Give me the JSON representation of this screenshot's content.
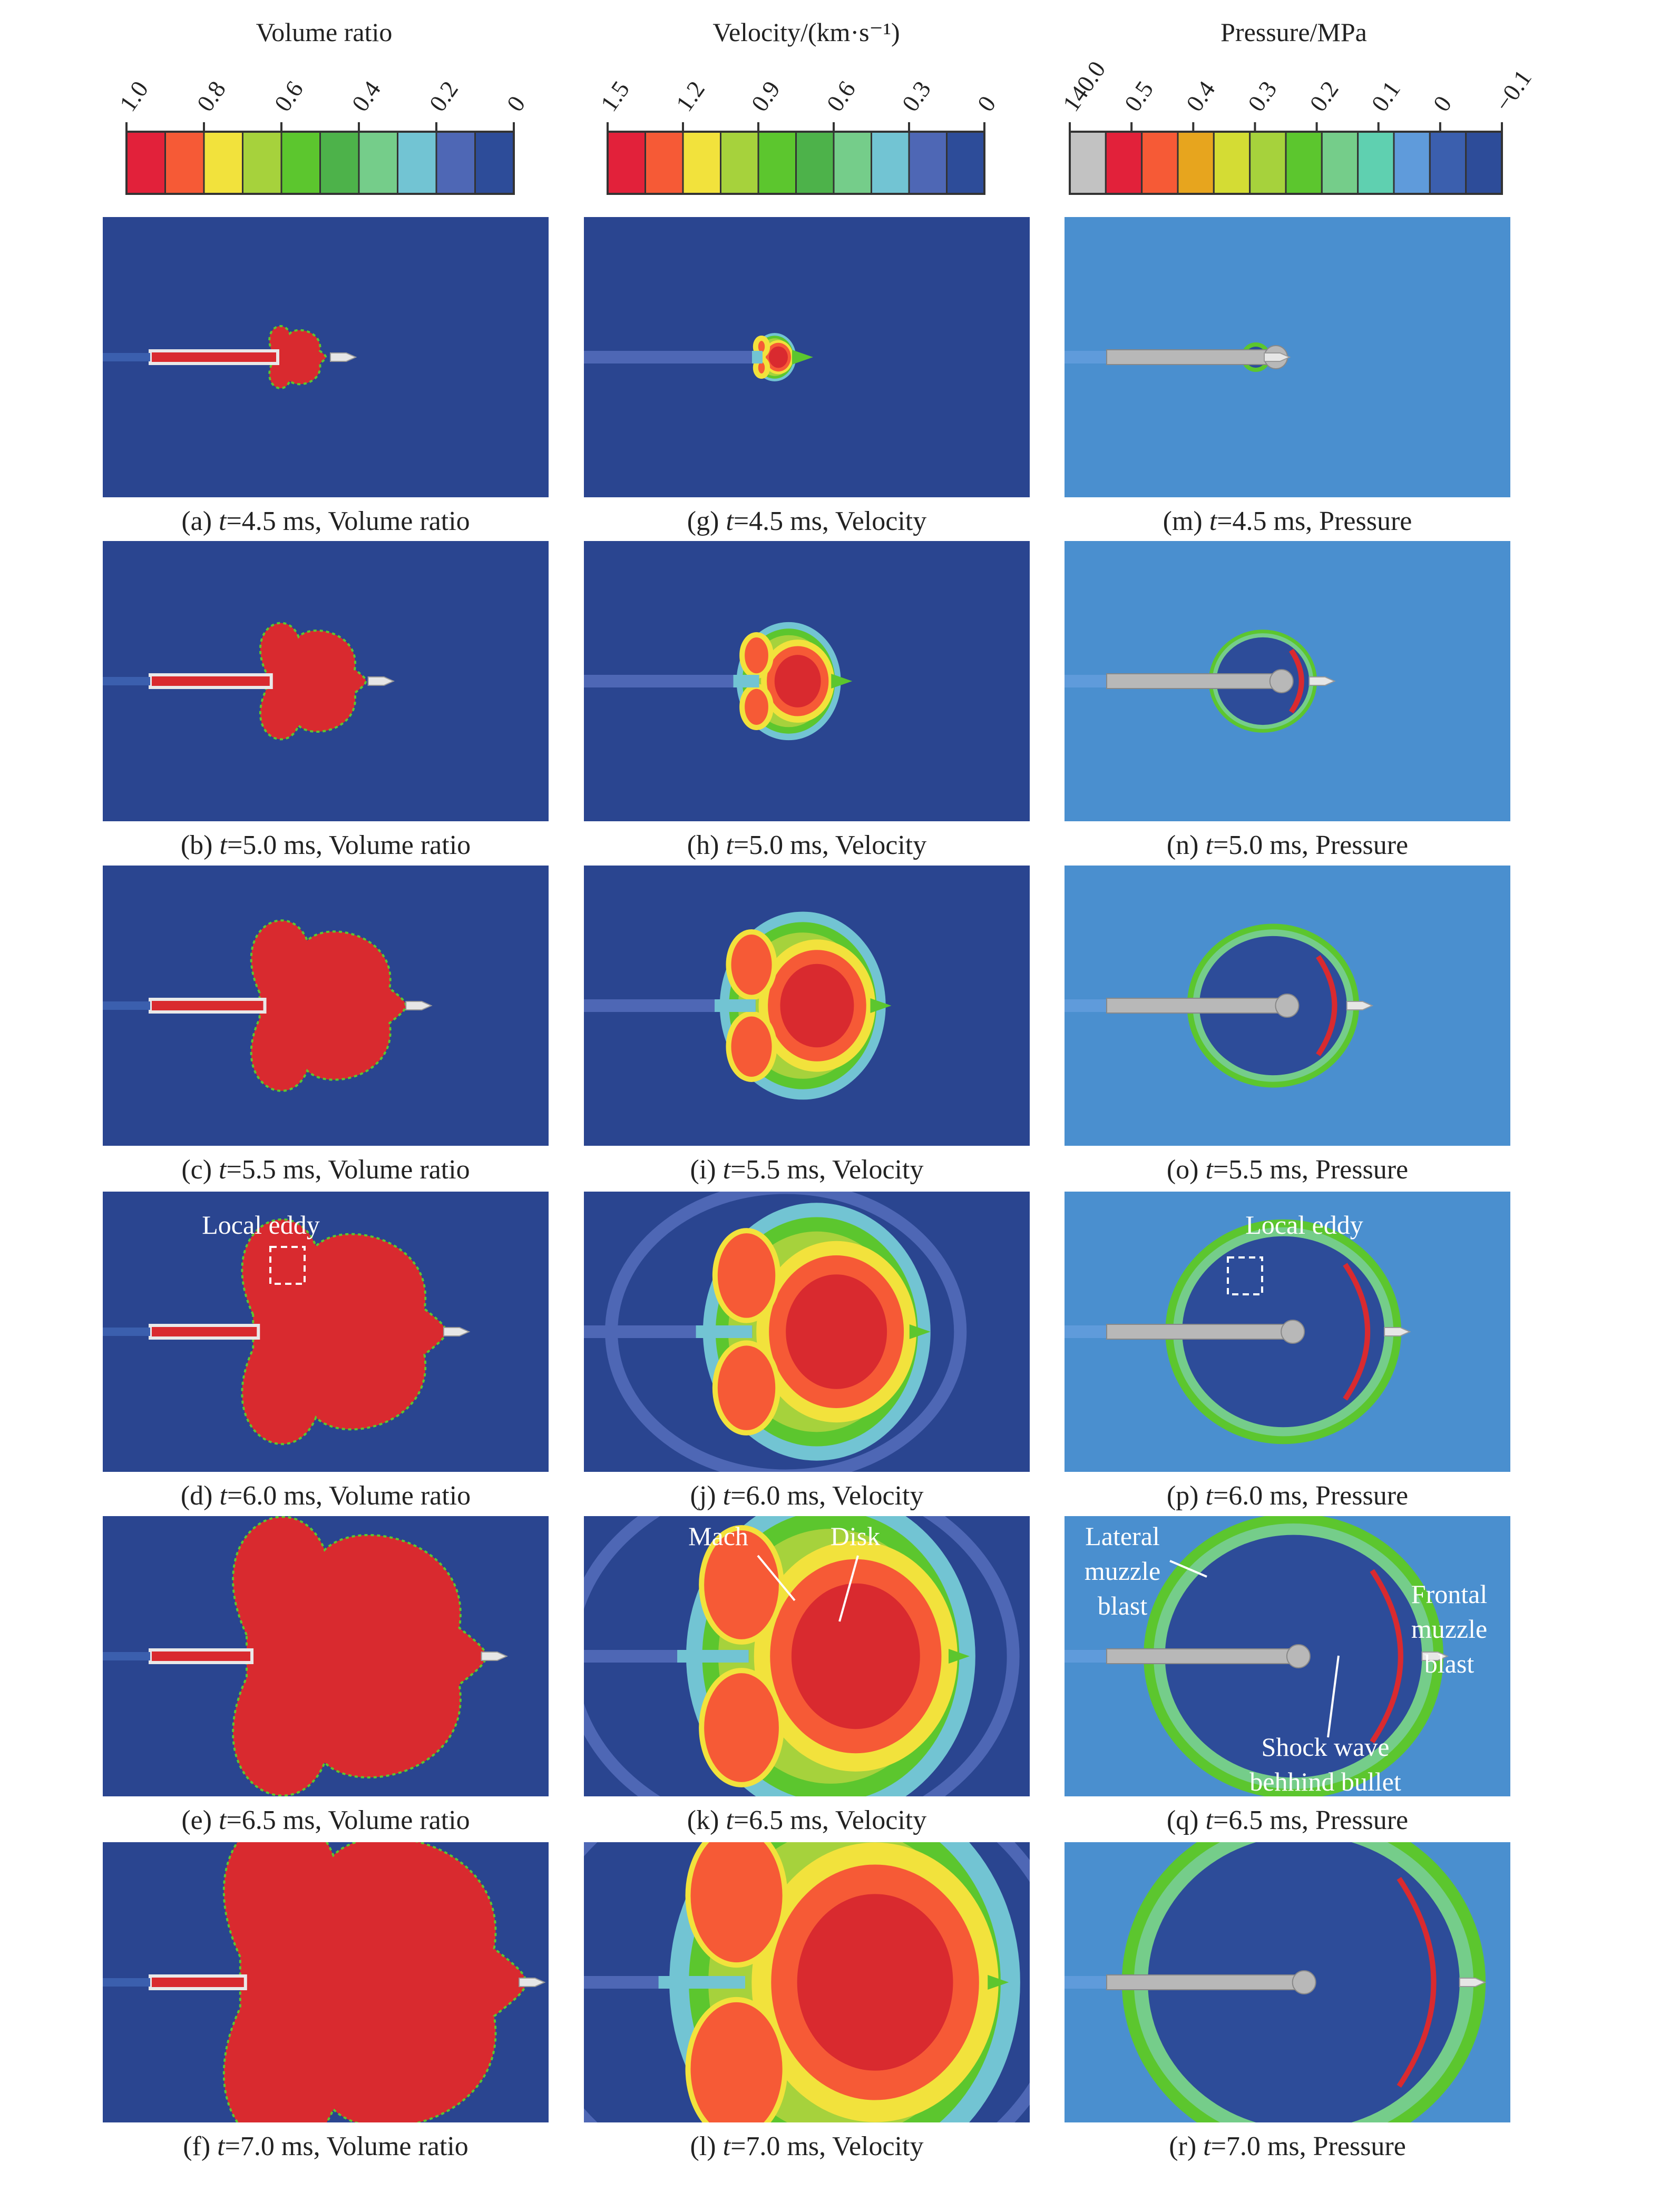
{
  "colorbars": [
    {
      "title": "Volume ratio",
      "ticks": [
        "1.0",
        "0.8",
        "0.6",
        "0.4",
        "0.2",
        "0"
      ],
      "colors": [
        "#e2213a",
        "#f65a36",
        "#f2e23c",
        "#a6d23c",
        "#5cc62e",
        "#4db24a",
        "#75cd8a",
        "#72c4d3",
        "#4e67b5",
        "#2d4c99"
      ]
    },
    {
      "title": "Velocity/(km·s⁻¹)",
      "ticks": [
        "1.5",
        "1.2",
        "0.9",
        "0.6",
        "0.3",
        "0"
      ],
      "colors": [
        "#e2213a",
        "#f65a36",
        "#f2e23c",
        "#a6d23c",
        "#5cc62e",
        "#4db24a",
        "#75cd8a",
        "#72c4d3",
        "#4e67b5",
        "#2d4c99"
      ]
    },
    {
      "title": "Pressure/MPa",
      "ticks": [
        "140.0",
        "0.5",
        "0.4",
        "0.3",
        "0.2",
        "0.1",
        "0",
        "−0.1"
      ],
      "colors": [
        "#c2c2c2",
        "#e2213a",
        "#f65a36",
        "#e7a51e",
        "#d4dc34",
        "#a6d23c",
        "#5cc62e",
        "#75cd8a",
        "#5fd0b0",
        "#5f9bdb",
        "#3b5fae",
        "#2d4c99"
      ]
    }
  ],
  "panels": [
    {
      "id": "a",
      "col": 0,
      "row": 0,
      "caption_prefix": "(a) ",
      "caption_t": "t",
      "caption_rest": "=4.5 ms, Volume ratio"
    },
    {
      "id": "b",
      "col": 0,
      "row": 1,
      "caption_prefix": "(b) ",
      "caption_t": "t",
      "caption_rest": "=5.0 ms, Volume ratio"
    },
    {
      "id": "c",
      "col": 0,
      "row": 2,
      "caption_prefix": "(c) ",
      "caption_t": "t",
      "caption_rest": "=5.5 ms, Volume ratio"
    },
    {
      "id": "d",
      "col": 0,
      "row": 3,
      "caption_prefix": "(d) ",
      "caption_t": "t",
      "caption_rest": "=6.0 ms, Volume ratio"
    },
    {
      "id": "e",
      "col": 0,
      "row": 4,
      "caption_prefix": "(e) ",
      "caption_t": "t",
      "caption_rest": "=6.5 ms, Volume ratio"
    },
    {
      "id": "f",
      "col": 0,
      "row": 5,
      "caption_prefix": "(f) ",
      "caption_t": "t",
      "caption_rest": "=7.0 ms, Volume ratio"
    },
    {
      "id": "g",
      "col": 1,
      "row": 0,
      "caption_prefix": "(g) ",
      "caption_t": "t",
      "caption_rest": "=4.5 ms, Velocity"
    },
    {
      "id": "h",
      "col": 1,
      "row": 1,
      "caption_prefix": "(h) ",
      "caption_t": "t",
      "caption_rest": "=5.0 ms, Velocity"
    },
    {
      "id": "i",
      "col": 1,
      "row": 2,
      "caption_prefix": "(i) ",
      "caption_t": "t",
      "caption_rest": "=5.5 ms, Velocity"
    },
    {
      "id": "j",
      "col": 1,
      "row": 3,
      "caption_prefix": "(j) ",
      "caption_t": "t",
      "caption_rest": "=6.0 ms, Velocity"
    },
    {
      "id": "k",
      "col": 1,
      "row": 4,
      "caption_prefix": "(k) ",
      "caption_t": "t",
      "caption_rest": "=6.5 ms, Velocity"
    },
    {
      "id": "l",
      "col": 1,
      "row": 5,
      "caption_prefix": "(l) ",
      "caption_t": "t",
      "caption_rest": "=7.0 ms, Velocity"
    },
    {
      "id": "m",
      "col": 2,
      "row": 0,
      "caption_prefix": "(m) ",
      "caption_t": "t",
      "caption_rest": "=4.5 ms, Pressure"
    },
    {
      "id": "n",
      "col": 2,
      "row": 1,
      "caption_prefix": "(n) ",
      "caption_t": "t",
      "caption_rest": "=5.0 ms, Pressure"
    },
    {
      "id": "o",
      "col": 2,
      "row": 2,
      "caption_prefix": "(o) ",
      "caption_t": "t",
      "caption_rest": "=5.5 ms, Pressure"
    },
    {
      "id": "p",
      "col": 2,
      "row": 3,
      "caption_prefix": "(p) ",
      "caption_t": "t",
      "caption_rest": "=6.0 ms, Pressure"
    },
    {
      "id": "q",
      "col": 2,
      "row": 4,
      "caption_prefix": "(q) ",
      "caption_t": "t",
      "caption_rest": "=6.5 ms, Pressure"
    },
    {
      "id": "r",
      "col": 2,
      "row": 5,
      "caption_prefix": "(r) ",
      "caption_t": "t",
      "caption_rest": "=7.0 ms, Pressure"
    }
  ],
  "annotations": {
    "local_eddy_d": "Local eddy",
    "local_eddy_p": "Local eddy",
    "mach": "Mach",
    "disk": "Disk",
    "lateral": [
      "Lateral",
      "muzzle",
      "blast"
    ],
    "frontal": [
      "Frontal",
      "muzzle",
      "blast"
    ],
    "shock": [
      "Shock wave",
      "behhind bullet"
    ]
  },
  "colors": {
    "background_dark": "#2a4590",
    "background_pressure": "#4a8fcf",
    "gas_red": "#d92a2f",
    "barrel_gray": "#b8b8b8"
  }
}
